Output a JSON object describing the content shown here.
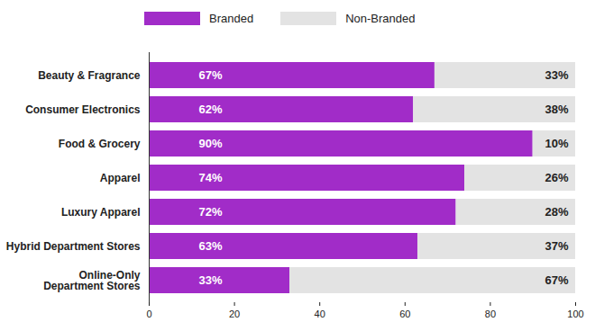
{
  "chart_data": {
    "type": "bar",
    "orientation": "horizontal",
    "stacked": true,
    "data_labels": true,
    "legend": "top",
    "categories": [
      "Beauty & Fragrance",
      "Consumer Electronics",
      "Food & Grocery",
      "Apparel",
      "Luxury Apparel",
      "Hybrid Department Stores",
      "Online-Only\nDepartment Stores"
    ],
    "series": [
      {
        "name": "Branded",
        "color": "#a12cc8",
        "values": [
          67,
          62,
          90,
          74,
          72,
          63,
          33
        ],
        "value_labels": [
          "67%",
          "62%",
          "90%",
          "74%",
          "72%",
          "63%",
          "33%"
        ]
      },
      {
        "name": "Non-Branded",
        "color": "#e3e3e3",
        "values": [
          33,
          38,
          10,
          26,
          28,
          37,
          67
        ],
        "value_labels": [
          "33%",
          "38%",
          "10%",
          "26%",
          "28%",
          "37%",
          "67%"
        ]
      }
    ],
    "xlim": [
      0,
      100
    ],
    "xticks": [
      0,
      20,
      40,
      60,
      80,
      100
    ]
  }
}
